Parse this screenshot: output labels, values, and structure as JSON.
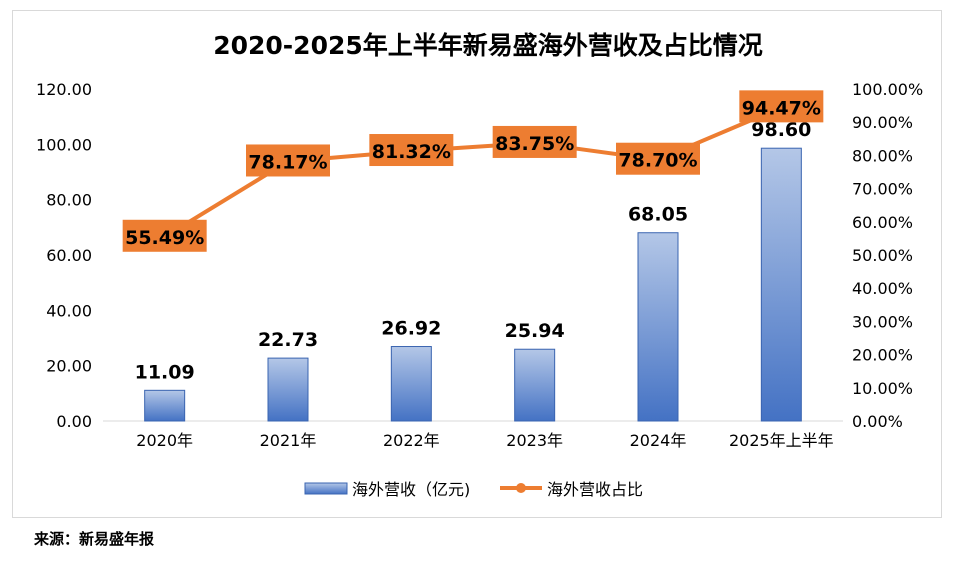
{
  "chart_data": {
    "type": "bar+line",
    "title": "2020-2025年上半年新易盛海外营收及占比情况",
    "categories": [
      "2020年",
      "2021年",
      "2022年",
      "2023年",
      "2024年",
      "2025年上半年"
    ],
    "series": [
      {
        "name": "海外营收（亿元)",
        "type": "bar",
        "axis": "left",
        "values": [
          11.09,
          22.73,
          26.92,
          25.94,
          68.05,
          98.6
        ],
        "labels": [
          "11.09",
          "22.73",
          "26.92",
          "25.94",
          "68.05",
          "98.60"
        ],
        "color": "#4472c4"
      },
      {
        "name": "海外营收占比",
        "type": "line",
        "axis": "right",
        "values": [
          55.49,
          78.17,
          81.32,
          83.75,
          78.7,
          94.47
        ],
        "labels": [
          "55.49%",
          "78.17%",
          "81.32%",
          "83.75%",
          "78.70%",
          "94.47%"
        ],
        "color": "#ed7d31"
      }
    ],
    "left_axis": {
      "ylim": [
        0,
        120
      ],
      "ticks": [
        "0.00",
        "20.00",
        "40.00",
        "60.00",
        "80.00",
        "100.00",
        "120.00"
      ]
    },
    "right_axis": {
      "ylim": [
        0,
        100
      ],
      "ticks": [
        "0.00%",
        "10.00%",
        "20.00%",
        "30.00%",
        "40.00%",
        "50.00%",
        "60.00%",
        "70.00%",
        "80.00%",
        "90.00%",
        "100.00%"
      ]
    },
    "legend": {
      "placement": "bottom"
    },
    "grid": false
  },
  "source": "来源：新易盛年报"
}
